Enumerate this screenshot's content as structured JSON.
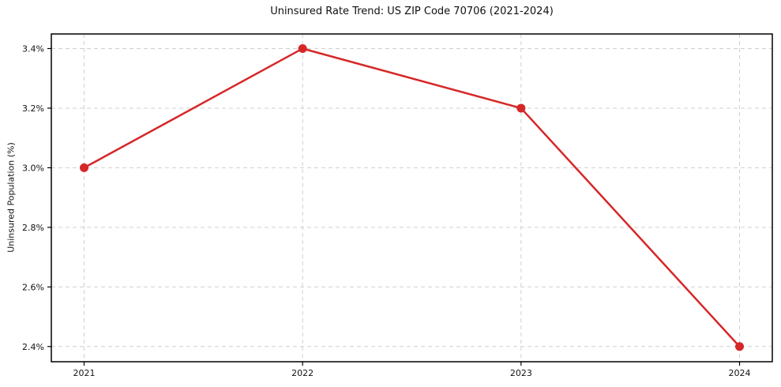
{
  "chart_data": {
    "type": "line",
    "title": "Uninsured Rate Trend: US ZIP Code 70706 (2021-2024)",
    "xlabel": "",
    "ylabel": "Uninsured Population (%)",
    "categories": [
      2021,
      2022,
      2023,
      2024
    ],
    "series": [
      {
        "name": "Uninsured Population (%)",
        "values": [
          3.0,
          3.4,
          3.2,
          2.4
        ]
      }
    ],
    "xtick_labels": [
      "2021",
      "2022",
      "2023",
      "2024"
    ],
    "yticks": [
      2.4,
      2.6,
      2.8,
      3.0,
      3.2,
      3.4
    ],
    "ytick_labels": [
      "2.4%",
      "2.6%",
      "2.8%",
      "3.0%",
      "3.2%",
      "3.4%"
    ],
    "xlim": [
      2020.85,
      2024.15
    ],
    "ylim": [
      2.349,
      3.449
    ],
    "grid": true,
    "legend": "none",
    "colors": {
      "line": "#d62728",
      "marker": "#d62728",
      "grid": "#cfcfcf",
      "spine": "#000000",
      "background": "#ffffff"
    }
  }
}
